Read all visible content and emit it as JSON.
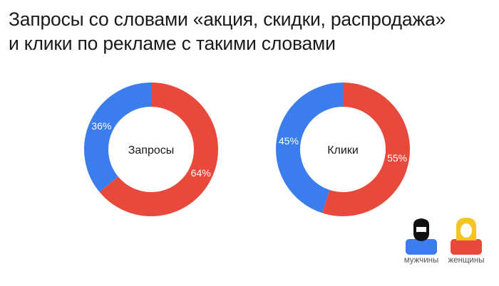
{
  "title": {
    "line1": "Запросы со словами «акция, скидки, распродажа»",
    "line2": "и клики по рекламе с такими словами"
  },
  "colors": {
    "men": "#3b7ded",
    "women": "#e74a3c",
    "men_head": "#111111",
    "women_hair": "#f4c423"
  },
  "legend": {
    "men": {
      "label": "мужчины",
      "icon": "man-icon"
    },
    "women": {
      "label": "женщины",
      "icon": "woman-icon"
    }
  },
  "chart_data": [
    {
      "type": "pie",
      "donut": true,
      "center_label": "Запросы",
      "slices": [
        {
          "name": "мужчины",
          "value": 36,
          "label": "36%"
        },
        {
          "name": "женщины",
          "value": 64,
          "label": "64%"
        }
      ]
    },
    {
      "type": "pie",
      "donut": true,
      "center_label": "Клики",
      "slices": [
        {
          "name": "мужчины",
          "value": 45,
          "label": "45%"
        },
        {
          "name": "женщины",
          "value": 55,
          "label": "55%"
        }
      ]
    }
  ]
}
